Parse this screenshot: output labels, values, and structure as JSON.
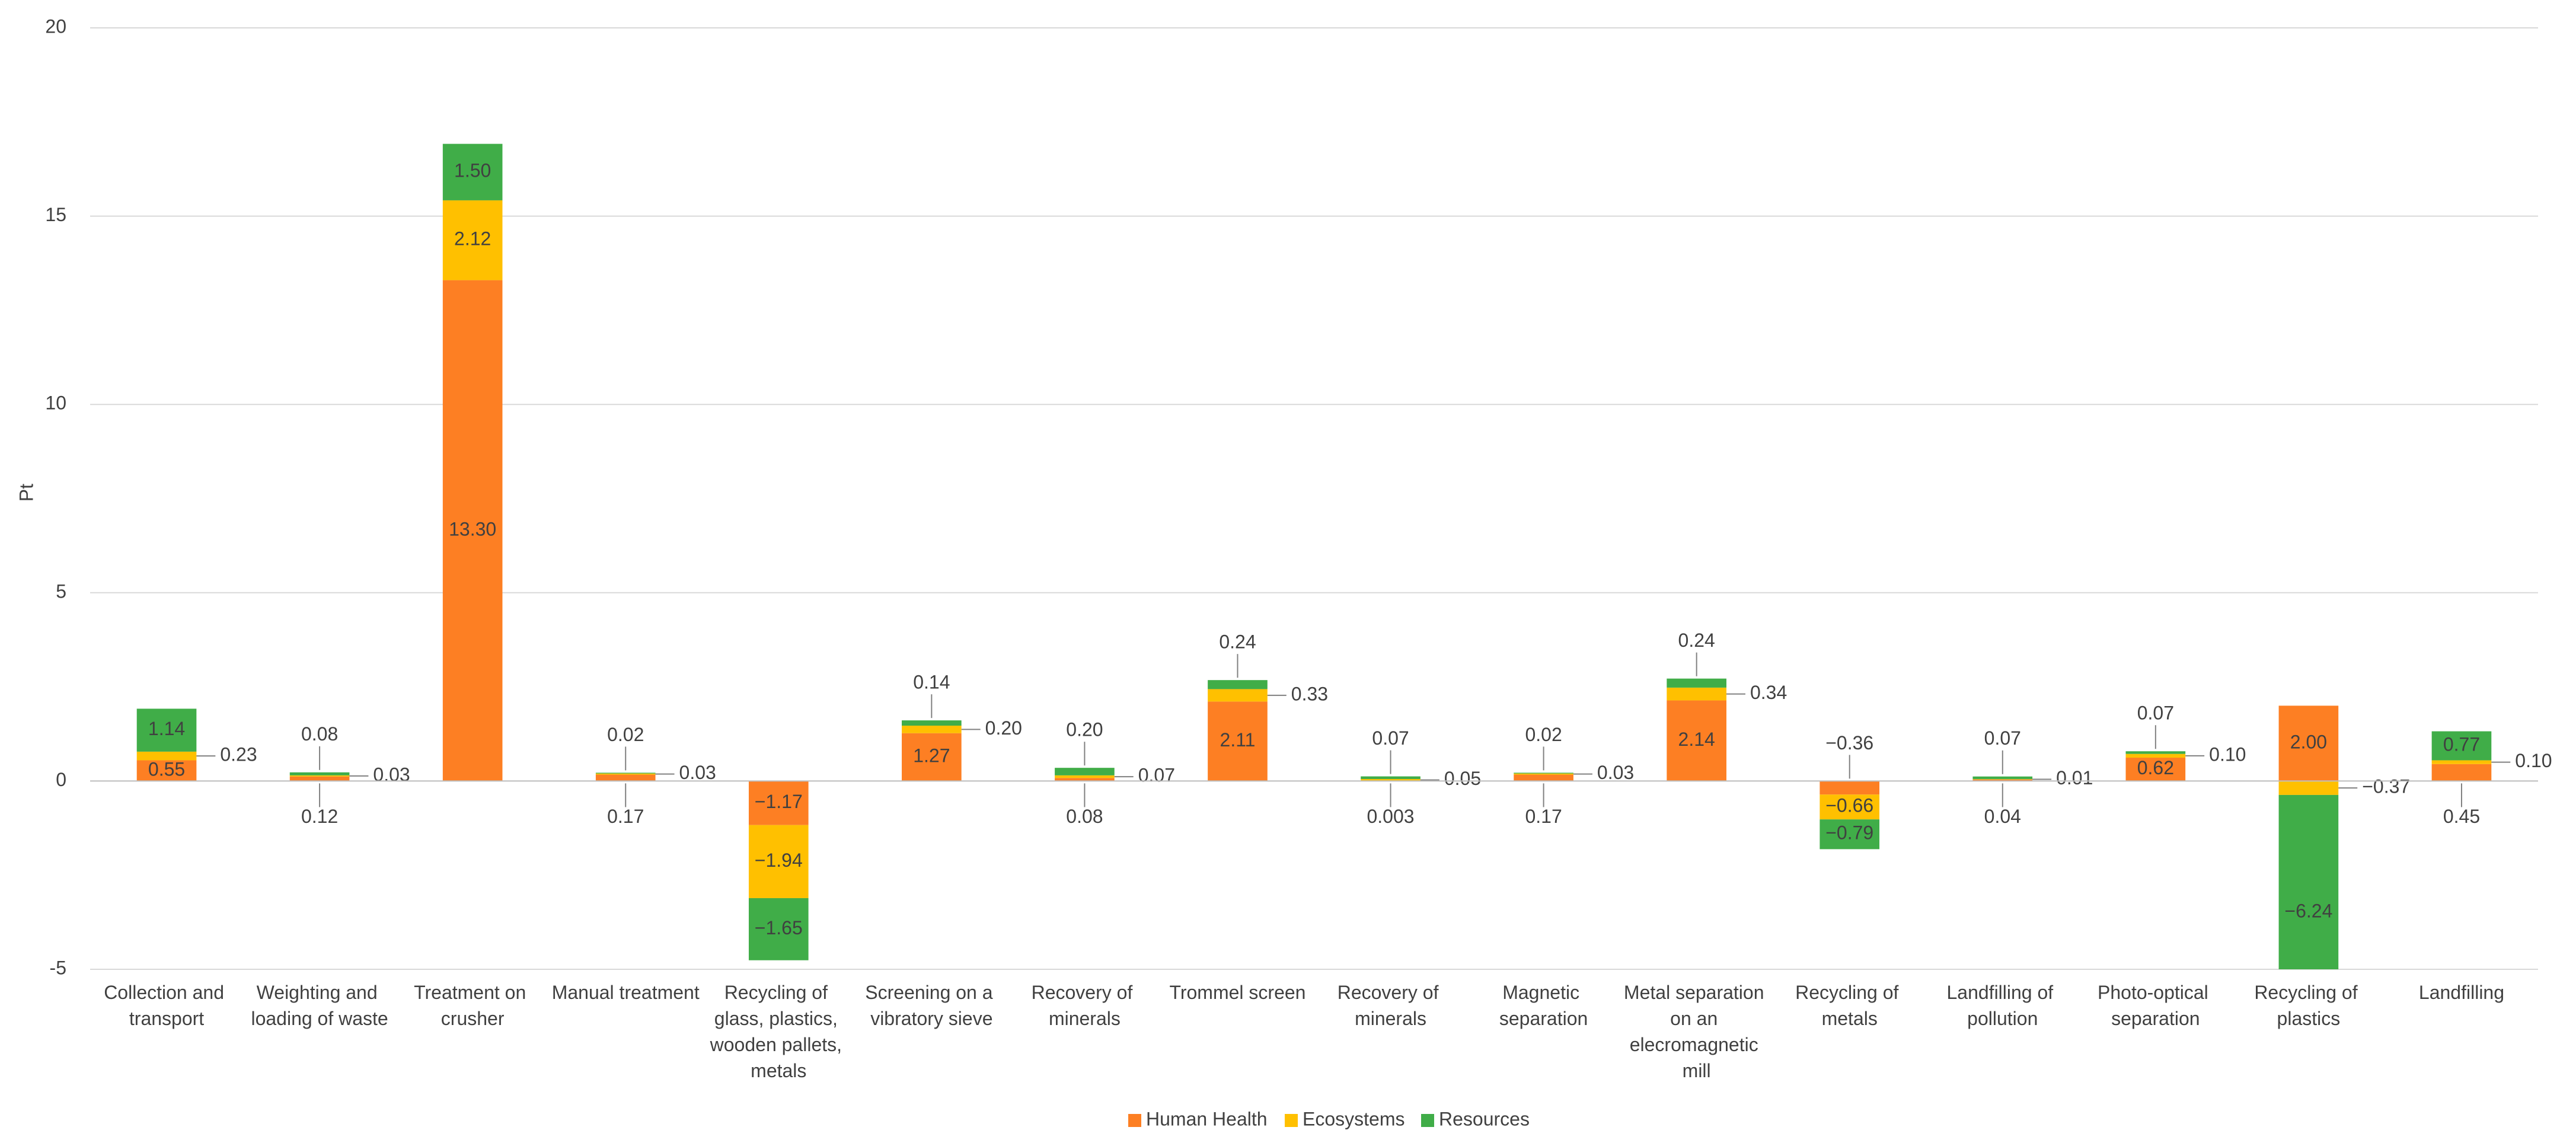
{
  "chart_data": {
    "type": "stacked_bar",
    "y_label": "Pt",
    "categories": [
      "Collection and transport",
      "Weighting and loading of waste",
      "Treatment on crusher",
      "Manual treatment",
      "Recycling of glass, plastics, wooden pallets, metals",
      "Screening on a vibratory sieve",
      "Recovery of minerals",
      "Trommel screen",
      "Recovery of minerals",
      "Magnetic separation",
      "Metal separation on an elecromagnetic mill",
      "Recycling of metals",
      "Landfilling of pollution",
      "Photo-optical separation",
      "Recycling of plastics",
      "Landfilling"
    ],
    "series": [
      {
        "name": "Human Health",
        "color": "#fd7f23",
        "values": [
          0.55,
          0.12,
          13.3,
          0.17,
          -1.17,
          1.27,
          0.08,
          2.11,
          0.003,
          0.17,
          2.14,
          -0.36,
          0.04,
          0.62,
          2.0,
          0.45
        ],
        "value_labels": [
          "0.55",
          "0.12",
          "13.30",
          "0.17",
          "−1.17",
          "1.27",
          "0.08",
          "2.11",
          "0.003",
          "0.17",
          "2.14",
          "−0.36",
          "0.04",
          "0.62",
          "2.00",
          "0.45"
        ]
      },
      {
        "name": "Ecosystems",
        "color": "#ffc000",
        "values": [
          0.23,
          0.03,
          2.12,
          0.03,
          -1.94,
          0.2,
          0.07,
          0.33,
          0.05,
          0.03,
          0.34,
          -0.66,
          0.01,
          0.1,
          -0.37,
          0.1
        ],
        "value_labels": [
          "0.23",
          "0.03",
          "2.12",
          "0.03",
          "−1.94",
          "0.20",
          "0.07",
          "0.33",
          "0.05",
          "0.03",
          "0.34",
          "−0.66",
          "0.01",
          "0.10",
          "−0.37",
          "0.10"
        ]
      },
      {
        "name": "Resources",
        "color": "#40ad48",
        "values": [
          1.14,
          0.08,
          1.5,
          0.02,
          -1.65,
          0.14,
          0.2,
          0.24,
          0.07,
          0.02,
          0.24,
          -0.79,
          0.07,
          0.07,
          -6.24,
          0.77
        ],
        "value_labels": [
          "1.14",
          "0.08",
          "1.50",
          "0.02",
          "−1.65",
          "0.14",
          "0.20",
          "0.24",
          "0.07",
          "0.02",
          "0.24",
          "−0.79",
          "0.07",
          "0.07",
          "−6.24",
          "0.77"
        ]
      }
    ],
    "ylim": [
      -5,
      20
    ],
    "yticks": [
      -5,
      0,
      5,
      10,
      15,
      20
    ],
    "grid": true,
    "legend": "bottom"
  }
}
